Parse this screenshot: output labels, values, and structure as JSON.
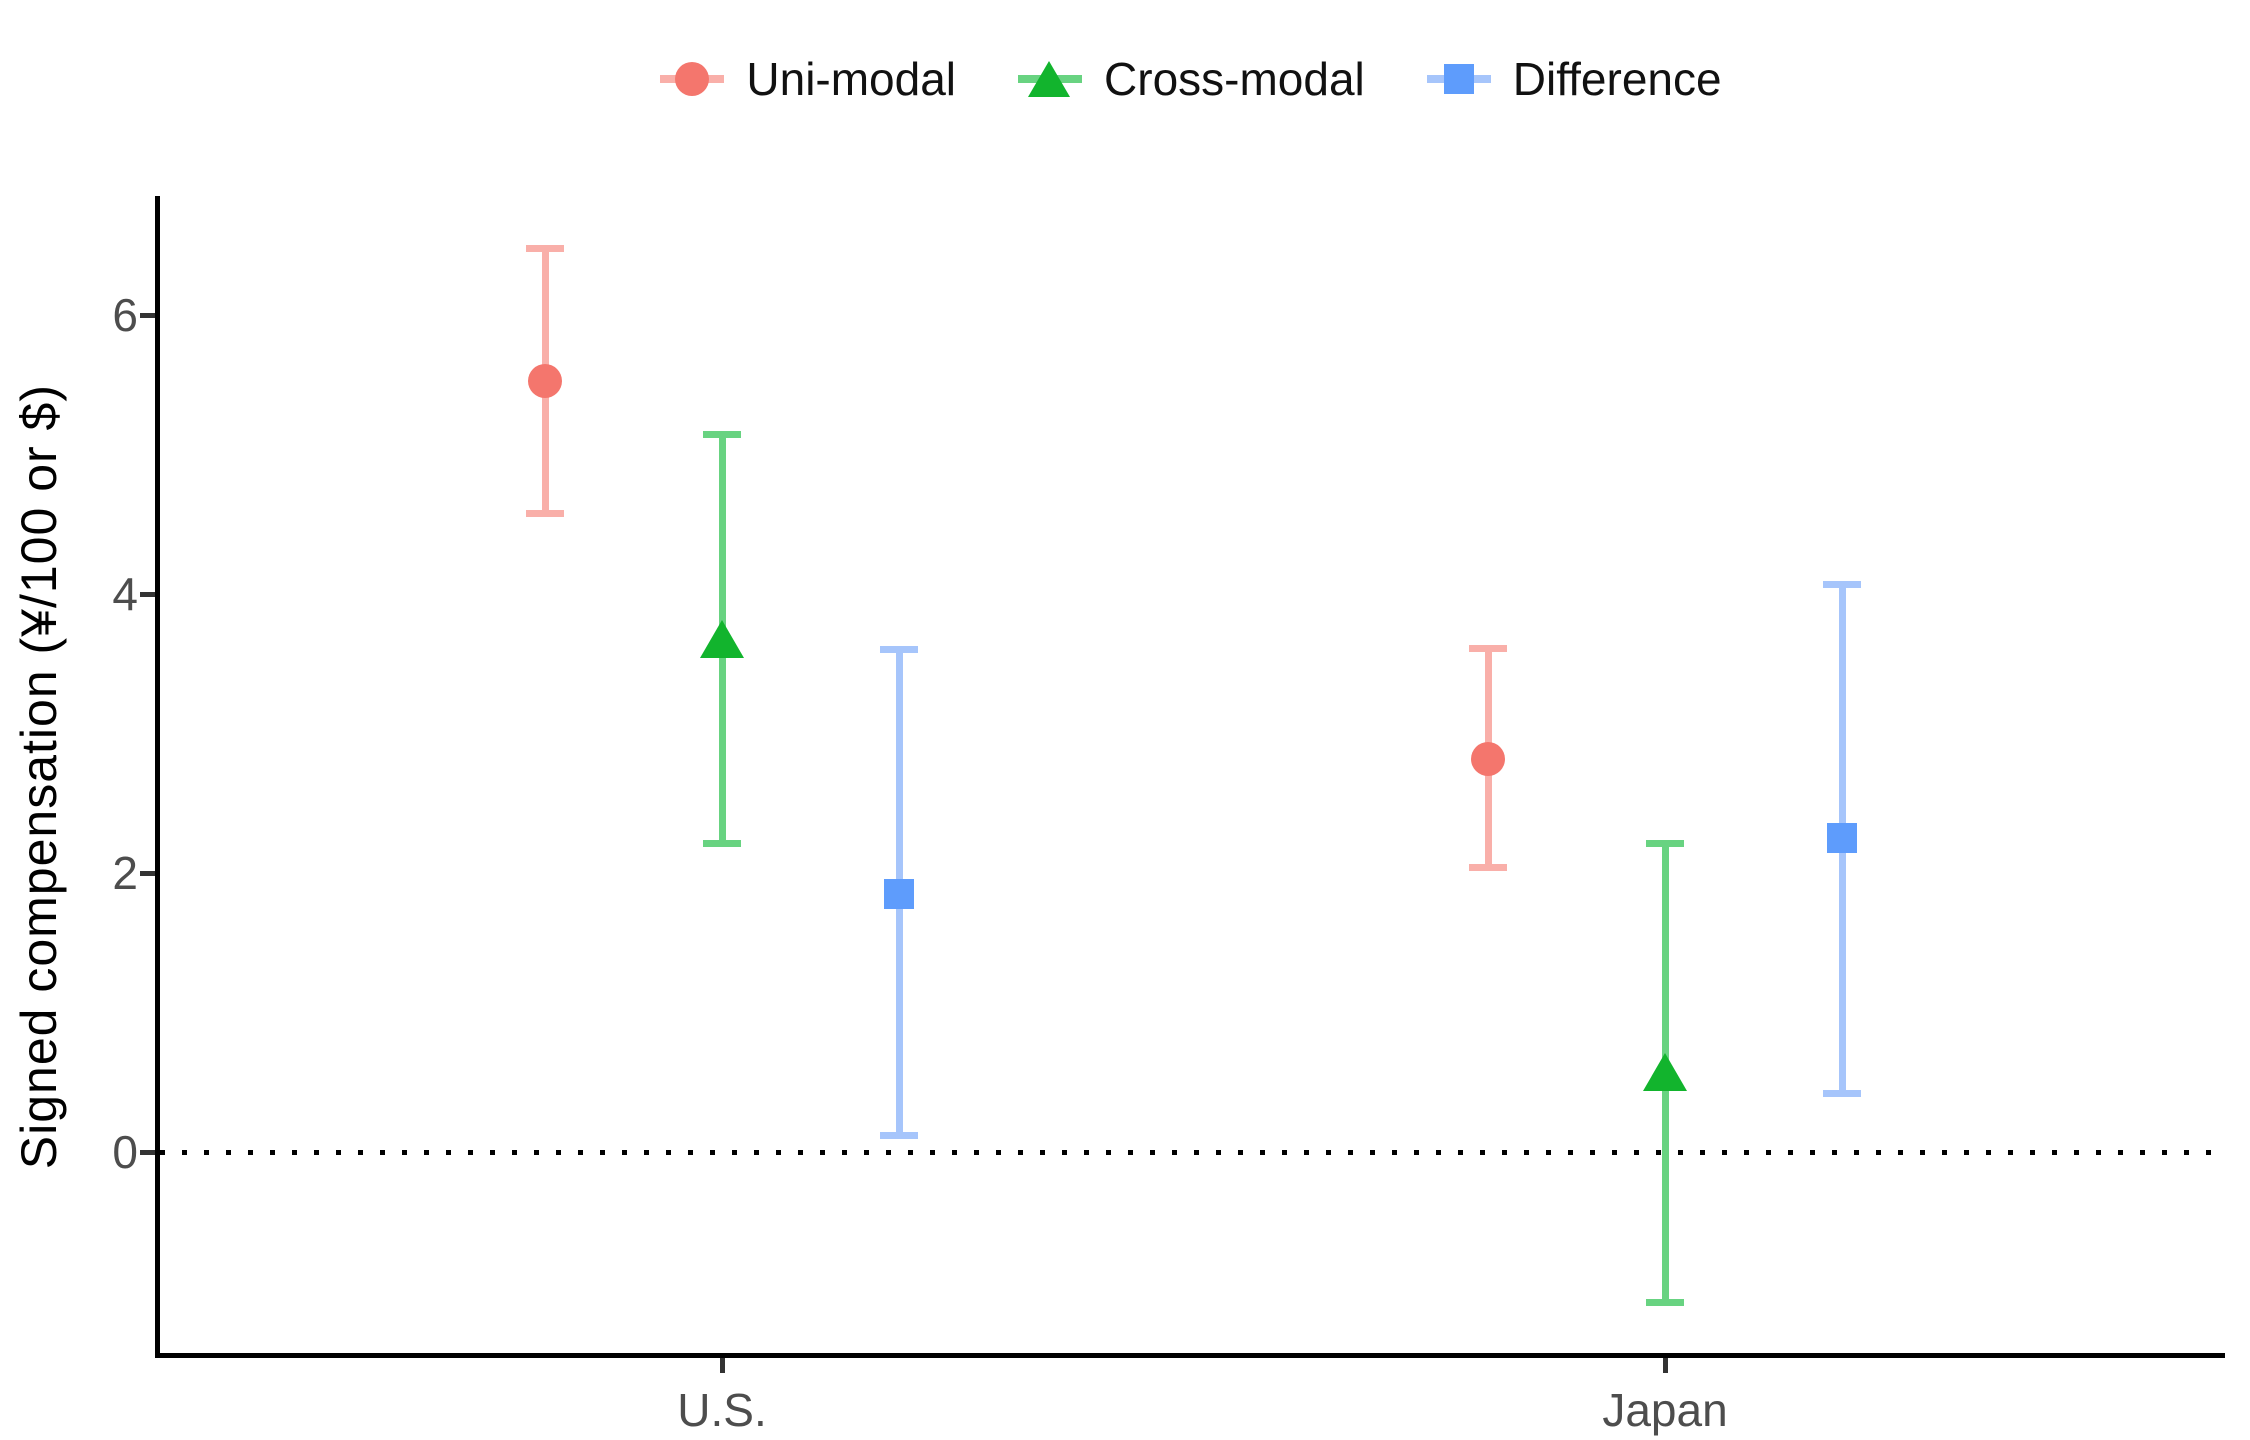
{
  "figure": {
    "background": "#FFFFFF"
  },
  "chart_data": {
    "type": "scatter",
    "subtype": "pointrange-errorbar",
    "title": "",
    "xlabel": "",
    "ylabel": "Signed compensation (¥/100 or $)",
    "categories": [
      "U.S.",
      "Japan"
    ],
    "y_ticks": [
      0,
      2,
      4,
      6
    ],
    "ylim": [
      -1.45,
      6.85
    ],
    "grid": false,
    "reference_line_y": 0,
    "reference_line_style": "dotted",
    "legend_position": "top-center",
    "axis_text_color": "#4D4D4D",
    "axis_line_color": "#000000",
    "series": [
      {
        "name": "Uni-modal",
        "marker": "circle",
        "color": "#F4766D",
        "ci_color": "#F9AFA9",
        "points": [
          {
            "category": "U.S.",
            "mean": 5.53,
            "ci_low": 4.58,
            "ci_high": 6.48
          },
          {
            "category": "Japan",
            "mean": 2.82,
            "ci_low": 2.04,
            "ci_high": 3.61
          }
        ]
      },
      {
        "name": "Cross-modal",
        "marker": "triangle",
        "color": "#12B42D",
        "ci_color": "#68D381",
        "points": [
          {
            "category": "U.S.",
            "mean": 3.68,
            "ci_low": 2.21,
            "ci_high": 5.14
          },
          {
            "category": "Japan",
            "mean": 0.57,
            "ci_low": -1.08,
            "ci_high": 2.21
          }
        ]
      },
      {
        "name": "Difference",
        "marker": "square",
        "color": "#5E9CFC",
        "ci_color": "#A6C5FB",
        "points": [
          {
            "category": "U.S.",
            "mean": 1.85,
            "ci_low": 0.12,
            "ci_high": 3.6
          },
          {
            "category": "Japan",
            "mean": 2.25,
            "ci_low": 0.42,
            "ci_high": 4.07
          }
        ]
      }
    ]
  }
}
